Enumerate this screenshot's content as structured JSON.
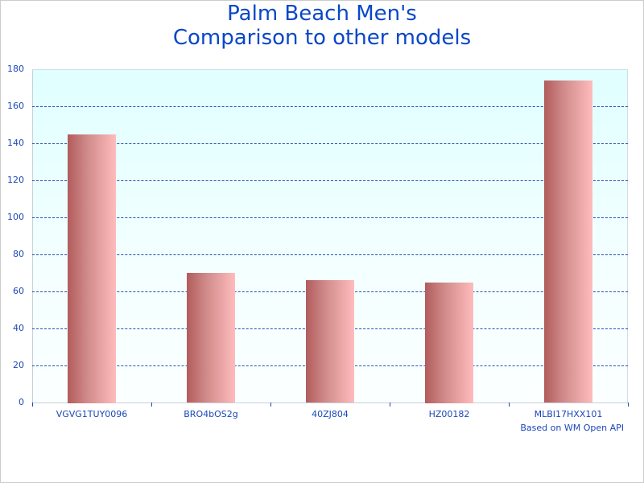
{
  "chart_data": {
    "type": "bar",
    "title": "Palm Beach Men's\nComparison to other models",
    "title_lines": [
      "Palm Beach Men's",
      "Comparison to other models"
    ],
    "categories": [
      "VGVG1TUY0096",
      "BRO4bOS2g",
      "40ZJ804",
      "HZ00182",
      "MLBI17HXX101"
    ],
    "values": [
      145,
      70,
      66,
      65,
      174
    ],
    "xlabel": "",
    "ylabel": "",
    "ylim": [
      0,
      180
    ],
    "yticks": [
      0,
      20,
      40,
      60,
      80,
      100,
      120,
      140,
      160,
      180
    ],
    "grid": true,
    "legend": null,
    "annotation": "Based on WM Open API"
  },
  "colors": {
    "title": "#0a47c7",
    "axis_text": "#1a47b8",
    "gridline": "#2450b8",
    "bar_dark": "#b25c5c",
    "bar_light": "#ffbcbc",
    "plot_bg_top": "#e0ffff",
    "plot_bg_bottom": "#fbffff"
  }
}
